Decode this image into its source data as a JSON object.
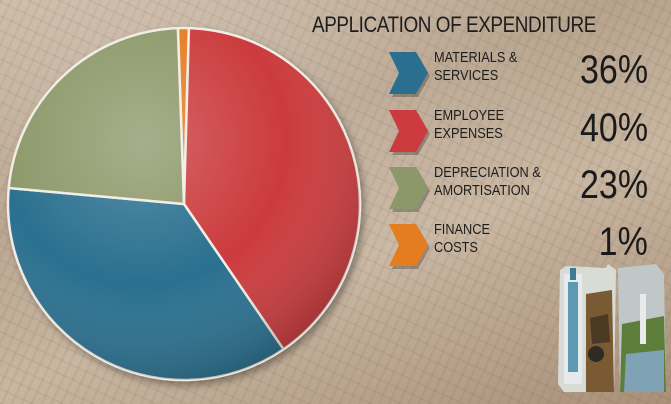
{
  "title": "APPLICATION OF EXPENDITURE",
  "chart_data": {
    "type": "pie",
    "title": "APPLICATION OF EXPENDITURE",
    "legend_position": "right",
    "slices": [
      {
        "key": "finance",
        "label": "FINANCE COSTS",
        "label_lines": "FINANCE\nCOSTS",
        "value": 1,
        "display": "1%",
        "color": "#e37d20"
      },
      {
        "key": "employee",
        "label": "EMPLOYEE EXPENSES",
        "label_lines": "EMPLOYEE\nEXPENSES",
        "value": 40,
        "display": "40%",
        "color": "#cb3a3c"
      },
      {
        "key": "materials",
        "label": "MATERIALS & SERVICES",
        "label_lines": "MATERIALS &\nSERVICES",
        "value": 36,
        "display": "36%",
        "color": "#2a6f8f"
      },
      {
        "key": "depreciation",
        "label": "DEPRECIATION & AMORTISATION",
        "label_lines": "DEPRECIATION &\nAMORTISATION",
        "value": 23,
        "display": "23%",
        "color": "#8c9869"
      }
    ],
    "legend_order": [
      "materials",
      "employee",
      "depreciation",
      "finance"
    ]
  }
}
